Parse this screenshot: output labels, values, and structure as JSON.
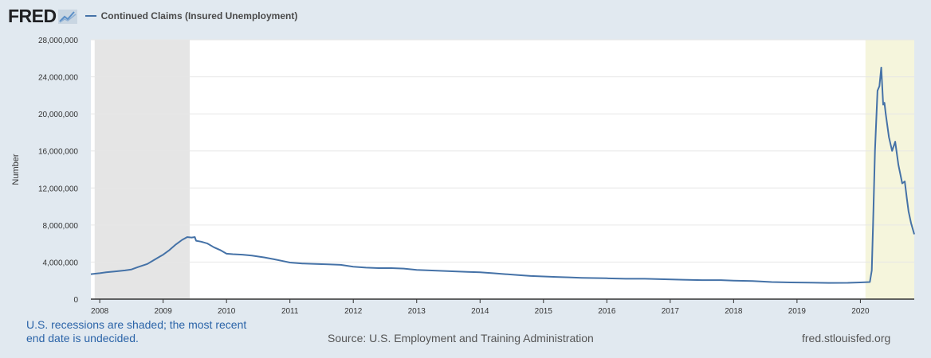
{
  "header": {
    "logo_text": "FRED",
    "logo_icon": "chart-line-icon",
    "series_color": "#4572a7"
  },
  "chart_data": {
    "type": "line",
    "title": "",
    "xlabel": "",
    "ylabel": "Number",
    "xlim": [
      2007.86,
      2020.85
    ],
    "ylim": [
      0,
      28000000
    ],
    "yticks": [
      0,
      4000000,
      8000000,
      12000000,
      16000000,
      20000000,
      24000000,
      28000000
    ],
    "ytick_labels": [
      "0",
      "4,000,000",
      "8,000,000",
      "12,000,000",
      "16,000,000",
      "20,000,000",
      "24,000,000",
      "28,000,000"
    ],
    "xticks": [
      2008,
      2009,
      2010,
      2011,
      2012,
      2013,
      2014,
      2015,
      2016,
      2017,
      2018,
      2019,
      2020
    ],
    "xtick_labels": [
      "2008",
      "2009",
      "2010",
      "2011",
      "2012",
      "2013",
      "2014",
      "2015",
      "2016",
      "2017",
      "2018",
      "2019",
      "2020"
    ],
    "grid": true,
    "legend_position": "top-left",
    "recessions": [
      [
        2007.92,
        2009.42
      ],
      [
        2020.08,
        2020.85
      ]
    ],
    "series": [
      {
        "name": "Continued Claims (Insured Unemployment)",
        "color": "#4572a7",
        "x": [
          2007.86,
          2008.0,
          2008.1,
          2008.25,
          2008.4,
          2008.5,
          2008.6,
          2008.75,
          2008.85,
          2008.95,
          2009.0,
          2009.1,
          2009.2,
          2009.3,
          2009.38,
          2009.45,
          2009.5,
          2009.52,
          2009.6,
          2009.7,
          2009.8,
          2009.9,
          2010.0,
          2010.1,
          2010.25,
          2010.4,
          2010.6,
          2010.75,
          2010.9,
          2011.0,
          2011.2,
          2011.4,
          2011.6,
          2011.8,
          2012.0,
          2012.2,
          2012.4,
          2012.6,
          2012.8,
          2013.0,
          2013.2,
          2013.4,
          2013.6,
          2013.8,
          2014.0,
          2014.2,
          2014.4,
          2014.6,
          2014.8,
          2015.0,
          2015.2,
          2015.4,
          2015.6,
          2015.8,
          2016.0,
          2016.3,
          2016.6,
          2016.9,
          2017.2,
          2017.5,
          2017.8,
          2018.0,
          2018.3,
          2018.6,
          2018.9,
          2019.2,
          2019.5,
          2019.8,
          2020.0,
          2020.15,
          2020.18,
          2020.2,
          2020.23,
          2020.27,
          2020.3,
          2020.33,
          2020.36,
          2020.38,
          2020.4,
          2020.42,
          2020.45,
          2020.5,
          2020.55,
          2020.6,
          2020.63,
          2020.66,
          2020.7,
          2020.73,
          2020.76,
          2020.8,
          2020.85
        ],
        "values": [
          2700000,
          2800000,
          2900000,
          3000000,
          3100000,
          3200000,
          3450000,
          3800000,
          4200000,
          4600000,
          4800000,
          5300000,
          5900000,
          6400000,
          6700000,
          6650000,
          6700000,
          6300000,
          6200000,
          6000000,
          5600000,
          5300000,
          4900000,
          4850000,
          4800000,
          4700000,
          4500000,
          4300000,
          4100000,
          3950000,
          3850000,
          3800000,
          3750000,
          3700000,
          3500000,
          3400000,
          3350000,
          3350000,
          3300000,
          3150000,
          3100000,
          3050000,
          3000000,
          2950000,
          2900000,
          2800000,
          2700000,
          2600000,
          2500000,
          2450000,
          2400000,
          2350000,
          2300000,
          2280000,
          2250000,
          2200000,
          2200000,
          2150000,
          2100000,
          2050000,
          2050000,
          2000000,
          1950000,
          1850000,
          1800000,
          1780000,
          1750000,
          1760000,
          1800000,
          1850000,
          3100000,
          8000000,
          16000000,
          22500000,
          23000000,
          25000000,
          21000000,
          21200000,
          20000000,
          19000000,
          17500000,
          16000000,
          17000000,
          14500000,
          13500000,
          12500000,
          12700000,
          11000000,
          9500000,
          8200000,
          7000000
        ]
      }
    ]
  },
  "footer": {
    "recession_note": "U.S. recessions are shaded; the most recent end date is undecided.",
    "source": "Source: U.S. Employment and Training Administration",
    "site": "fred.stlouisfed.org"
  }
}
